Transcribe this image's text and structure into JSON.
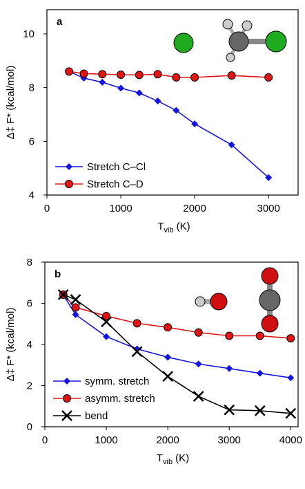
{
  "chart_data": [
    {
      "type": "line",
      "panel_label": "a",
      "xlabel_parts": [
        "T",
        "vib",
        "(K)"
      ],
      "ylabel": "Δ‡ F* (kcal/mol)",
      "xlim": [
        0,
        3400
      ],
      "xticks": [
        0,
        1000,
        2000,
        3000
      ],
      "ylim": [
        4,
        10.9
      ],
      "yticks": [
        4,
        6,
        8,
        10
      ],
      "legend": "lower left",
      "series": [
        {
          "name": "Stretch C–Cl",
          "color": "#1515e0",
          "marker": "diamond",
          "x": [
            300,
            500,
            750,
            1000,
            1250,
            1500,
            1750,
            2000,
            2500,
            3000
          ],
          "values": [
            8.6,
            8.35,
            8.2,
            7.98,
            7.8,
            7.5,
            7.15,
            6.65,
            5.87,
            4.65
          ]
        },
        {
          "name": "Stretch C–D",
          "color": "#e01515",
          "marker": "circle",
          "x": [
            300,
            500,
            750,
            1000,
            1250,
            1500,
            1750,
            2000,
            2500,
            3000
          ],
          "values": [
            8.6,
            8.52,
            8.5,
            8.48,
            8.47,
            8.5,
            8.38,
            8.38,
            8.45,
            8.38
          ]
        }
      ]
    },
    {
      "type": "line",
      "panel_label": "b",
      "xlabel_parts": [
        "T",
        "vib",
        "(K)"
      ],
      "ylabel": "Δ‡ F* (kcal/mol)",
      "xlim": [
        0,
        4120
      ],
      "xticks": [
        0,
        1000,
        2000,
        3000,
        4000
      ],
      "ylim": [
        0,
        8
      ],
      "yticks": [
        0,
        2,
        4,
        6,
        8
      ],
      "legend": "lower left",
      "series": [
        {
          "name": "symm. stretch",
          "color": "#1515e0",
          "marker": "diamond",
          "x": [
            300,
            500,
            1000,
            1500,
            2000,
            2500,
            3000,
            3500,
            4000
          ],
          "values": [
            6.4,
            5.45,
            4.38,
            3.78,
            3.38,
            3.05,
            2.83,
            2.6,
            2.38
          ]
        },
        {
          "name": "asymm. stretch",
          "color": "#e01515",
          "marker": "circle",
          "x": [
            300,
            500,
            1000,
            1500,
            2000,
            2500,
            3000,
            3500,
            4000
          ],
          "values": [
            6.42,
            5.8,
            5.38,
            5.03,
            4.83,
            4.58,
            4.42,
            4.42,
            4.3
          ]
        },
        {
          "name": "bend",
          "color": "#000000",
          "marker": "x",
          "x": [
            300,
            500,
            1000,
            1500,
            2000,
            2500,
            3000,
            3500,
            4000
          ],
          "values": [
            6.42,
            6.18,
            5.1,
            3.65,
            2.45,
            1.48,
            0.82,
            0.78,
            0.65
          ]
        }
      ]
    }
  ]
}
